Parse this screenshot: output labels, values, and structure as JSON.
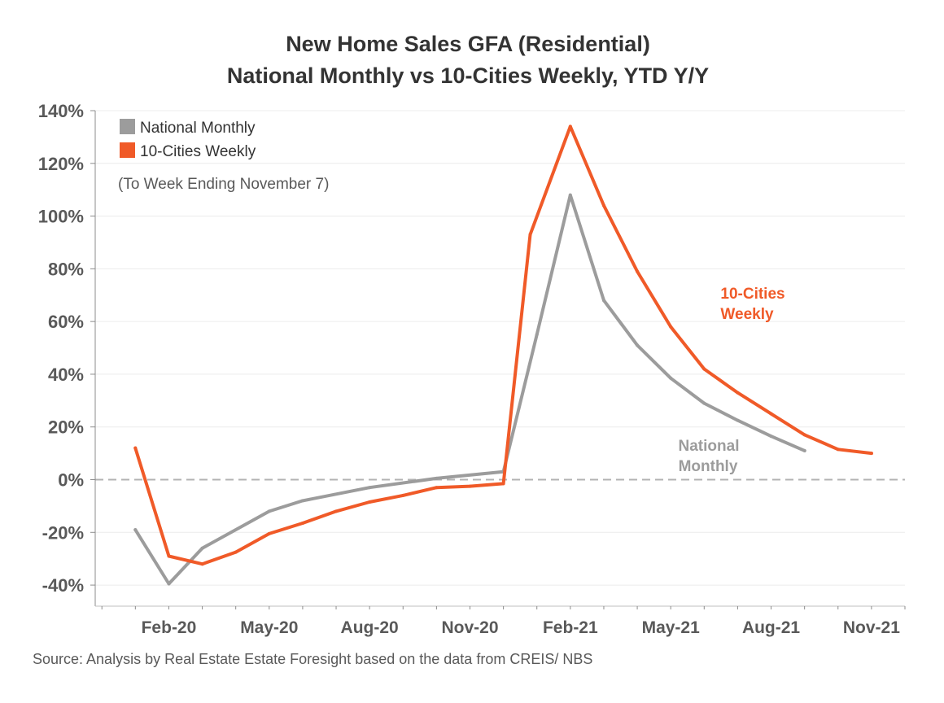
{
  "title": {
    "line1": "New Home Sales GFA (Residential)",
    "line2": "National Monthly vs 10-Cities Weekly, YTD Y/Y"
  },
  "legend": {
    "items": [
      {
        "label": "National Monthly",
        "color": "#9c9c9c"
      },
      {
        "label": "10-Cities Weekly",
        "color": "#f05a28"
      }
    ],
    "placement": "top-left"
  },
  "note": "(To Week Ending November 7)",
  "annotations": {
    "cities_line1": "10-Cities",
    "cities_line2": "Weekly",
    "national_line1": "National",
    "national_line2": "Monthly"
  },
  "source": "Source: Analysis by Real Estate Estate Foresight based on the data from CREIS/ NBS",
  "chart_data": {
    "type": "line",
    "y_ticks": [
      "140%",
      "120%",
      "100%",
      "80%",
      "60%",
      "40%",
      "20%",
      "0%",
      "-20%",
      "-40%"
    ],
    "y_tick_values": [
      140,
      120,
      100,
      80,
      60,
      40,
      20,
      0,
      -20,
      -40
    ],
    "ylim": [
      -48,
      140
    ],
    "x_ticks": [
      "Feb-20",
      "May-20",
      "Aug-20",
      "Nov-20",
      "Feb-21",
      "May-21",
      "Aug-21",
      "Nov-21"
    ],
    "x_tick_months": [
      1,
      4,
      7,
      10,
      13,
      16,
      19,
      22
    ],
    "xlim": [
      -1.2,
      23.0
    ],
    "grid": true,
    "zero_line": "dashed",
    "series": [
      {
        "name": "National Monthly",
        "color": "#9c9c9c",
        "x": [
          0,
          1,
          2,
          4,
          5,
          7,
          9,
          11,
          12,
          13,
          14,
          15,
          16,
          17,
          18,
          19,
          20
        ],
        "y": [
          -19,
          -39.5,
          -26,
          -12,
          -8,
          -3,
          0.5,
          3,
          55,
          108,
          68,
          51,
          38.5,
          29,
          22.5,
          16.5,
          11
        ]
      },
      {
        "name": "10-Cities Weekly",
        "color": "#f05a28",
        "x": [
          0,
          1,
          2,
          3,
          4,
          5,
          6,
          7,
          8,
          9,
          10,
          11,
          11.8,
          13,
          14,
          15,
          16,
          17,
          18,
          19,
          20,
          21,
          22
        ],
        "y": [
          12,
          -29,
          -32,
          -27.5,
          -20.5,
          -16.5,
          -12,
          -8.5,
          -6,
          -3,
          -2.5,
          -1.5,
          93,
          134,
          104,
          79,
          58,
          42,
          33,
          25,
          17,
          11.5,
          10
        ]
      }
    ]
  }
}
